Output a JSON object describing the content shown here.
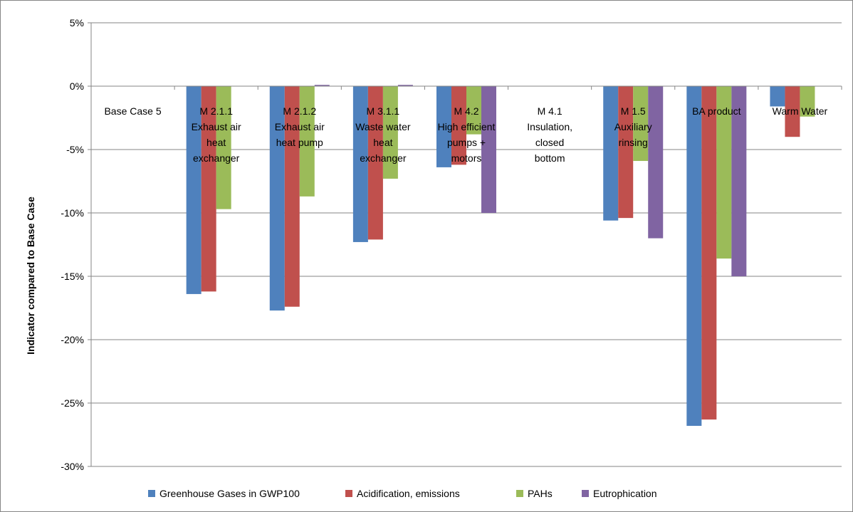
{
  "chart_data": {
    "type": "bar",
    "title": "",
    "xlabel": "",
    "ylabel": "Indicator compared to Base Case",
    "ylim": [
      -30,
      5
    ],
    "y_unit": "%",
    "y_ticks": [
      "5%",
      "0%",
      "-5%",
      "-10%",
      "-15%",
      "-20%",
      "-25%",
      "-30%"
    ],
    "y_tick_values": [
      5,
      0,
      -5,
      -10,
      -15,
      -20,
      -25,
      -30
    ],
    "grid": true,
    "legend_position": "bottom",
    "categories": [
      [
        "Base Case 5"
      ],
      [
        "M 2.1.1",
        "Exhaust air",
        "heat",
        "exchanger"
      ],
      [
        "M 2.1.2",
        "Exhaust air",
        "heat pump"
      ],
      [
        "M 3.1.1",
        "Waste water",
        "heat",
        "exchanger"
      ],
      [
        "M 4.2",
        "High efficient",
        "pumps +",
        "motors"
      ],
      [
        "M 4.1",
        "Insulation,",
        "closed",
        "bottom"
      ],
      [
        "M 1.5",
        "Auxiliary",
        "rinsing"
      ],
      [
        "BA product"
      ],
      [
        "Warm Water"
      ]
    ],
    "series": [
      {
        "name": "Greenhouse Gases in GWP100",
        "color": "#4f81bd",
        "values": [
          0,
          -16.4,
          -17.7,
          -12.3,
          -6.4,
          0,
          -10.6,
          -26.8,
          -1.6
        ]
      },
      {
        "name": "Acidification, emissions",
        "color": "#c0504d",
        "values": [
          0,
          -16.2,
          -17.4,
          -12.1,
          -6.2,
          0,
          -10.4,
          -26.3,
          -4.0
        ]
      },
      {
        "name": "PAHs",
        "color": "#9bbb59",
        "values": [
          0,
          -9.7,
          -8.7,
          -7.3,
          -3.8,
          0,
          -5.9,
          -13.6,
          -2.4
        ]
      },
      {
        "name": "Eutrophication",
        "color": "#8064a2",
        "values": [
          0,
          0,
          0.1,
          0.1,
          -10.0,
          0,
          -12.0,
          -15.0,
          0
        ]
      }
    ]
  }
}
